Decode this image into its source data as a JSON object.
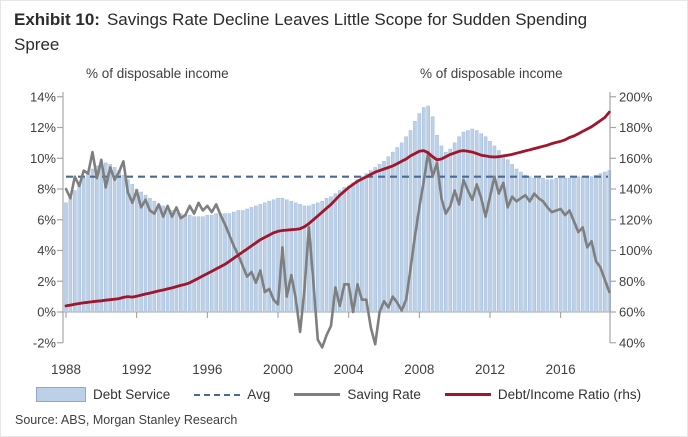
{
  "title": {
    "prefix": "Exhibit 10:",
    "main": "Savings Rate Decline Leaves Little Scope for Sudden Spending Spree"
  },
  "source": "Source: ABS, Morgan Stanley Research",
  "chart_data": {
    "type": "bar+line combo, quarterly time series",
    "x_start": 1988.0,
    "x_step": 0.25,
    "x_end": 2018.75,
    "left_axis": {
      "label": "% of disposable income",
      "min": -2,
      "max": 14,
      "tick_values": [
        14,
        12,
        10,
        8,
        6,
        4,
        2,
        0,
        -2
      ],
      "tick_labels": [
        "14%",
        "12%",
        "10%",
        "8%",
        "6%",
        "4%",
        "2%",
        "0%",
        "-2%"
      ]
    },
    "right_axis": {
      "label": "% of disposable income",
      "min": 40,
      "max": 200,
      "tick_values": [
        200,
        180,
        160,
        140,
        120,
        100,
        80,
        60,
        40
      ],
      "tick_labels": [
        "200%",
        "180%",
        "160%",
        "140%",
        "120%",
        "100%",
        "80%",
        "60%",
        "40%"
      ]
    },
    "x_axis": {
      "tick_values": [
        1988,
        1992,
        1996,
        2000,
        2004,
        2008,
        2012,
        2016
      ],
      "tick_labels": [
        "1988",
        "1992",
        "1996",
        "2000",
        "2004",
        "2008",
        "2012",
        "2016"
      ]
    },
    "series": [
      {
        "name": "Debt Service",
        "type": "bar",
        "axis": "left",
        "color": "#bcd0e8",
        "edge_color": "#a3bbd8",
        "values": [
          7.1,
          7.4,
          7.9,
          8.3,
          8.7,
          9.0,
          9.3,
          9.5,
          9.6,
          9.7,
          9.6,
          9.4,
          9.2,
          8.9,
          8.6,
          8.3,
          8.0,
          7.8,
          7.6,
          7.4,
          7.2,
          7.0,
          6.9,
          6.8,
          6.6,
          6.5,
          6.4,
          6.3,
          6.3,
          6.2,
          6.2,
          6.2,
          6.3,
          6.3,
          6.4,
          6.4,
          6.4,
          6.4,
          6.5,
          6.6,
          6.6,
          6.7,
          6.8,
          6.9,
          7.0,
          7.1,
          7.2,
          7.3,
          7.4,
          7.4,
          7.3,
          7.2,
          7.1,
          7.0,
          6.9,
          6.9,
          7.0,
          7.1,
          7.2,
          7.4,
          7.5,
          7.7,
          7.9,
          8.1,
          8.2,
          8.4,
          8.6,
          8.8,
          9.0,
          9.2,
          9.4,
          9.6,
          9.8,
          10.1,
          10.4,
          10.7,
          11.0,
          11.4,
          11.8,
          12.4,
          12.9,
          13.3,
          13.4,
          12.7,
          11.5,
          10.8,
          10.4,
          10.6,
          11.0,
          11.4,
          11.7,
          11.8,
          11.9,
          11.8,
          11.6,
          11.4,
          11.1,
          10.8,
          10.5,
          10.2,
          9.9,
          9.6,
          9.3,
          9.1,
          8.9,
          8.8,
          8.7,
          8.7,
          8.7,
          8.6,
          8.6,
          8.7,
          8.7,
          8.7,
          8.7,
          8.8,
          8.8,
          8.8,
          8.8,
          8.8,
          8.9,
          9.0,
          9.1,
          9.2
        ]
      },
      {
        "name": "Avg",
        "type": "dashed-line",
        "axis": "left",
        "color": "#4a6a94",
        "value": 8.8
      },
      {
        "name": "Saving Rate",
        "type": "line",
        "axis": "left",
        "color": "#7f7f7f",
        "values": [
          8.0,
          7.4,
          8.8,
          8.2,
          9.2,
          9.0,
          10.4,
          8.7,
          9.9,
          8.1,
          9.4,
          8.6,
          9.1,
          9.8,
          7.8,
          7.1,
          7.9,
          6.8,
          7.3,
          6.6,
          6.4,
          7.0,
          6.2,
          6.9,
          6.2,
          6.8,
          6.1,
          6.3,
          6.9,
          6.4,
          7.1,
          6.6,
          6.9,
          6.5,
          7.0,
          6.3,
          5.7,
          5.0,
          4.3,
          3.7,
          3.0,
          2.3,
          2.6,
          1.9,
          2.7,
          1.3,
          1.5,
          0.8,
          0.5,
          4.2,
          1.0,
          2.4,
          0.9,
          -1.3,
          1.5,
          5.5,
          2.0,
          -1.8,
          -2.3,
          -1.5,
          -0.9,
          1.6,
          0.4,
          1.8,
          1.8,
          0.0,
          1.8,
          0.8,
          0.8,
          -1.0,
          -2.1,
          0.0,
          0.7,
          0.3,
          1.0,
          0.6,
          0.1,
          0.8,
          2.8,
          4.9,
          6.8,
          8.5,
          10.4,
          8.8,
          9.7,
          7.4,
          6.4,
          6.9,
          7.9,
          7.0,
          8.6,
          7.9,
          7.3,
          8.3,
          7.4,
          6.2,
          7.5,
          8.8,
          7.7,
          8.4,
          6.8,
          7.5,
          7.2,
          7.4,
          7.6,
          7.2,
          7.7,
          7.4,
          7.2,
          6.8,
          6.5,
          6.6,
          6.7,
          6.3,
          6.6,
          5.9,
          5.2,
          5.5,
          4.2,
          4.6,
          3.3,
          2.9,
          2.1,
          1.3
        ]
      },
      {
        "name": "Debt/Income Ratio (rhs)",
        "type": "line",
        "axis": "right",
        "color": "#a0162c",
        "values": [
          64,
          64.5,
          65,
          65.5,
          66,
          66.3,
          66.7,
          67,
          67.3,
          67.7,
          68,
          68.3,
          68.7,
          69.5,
          70,
          69.7,
          70.3,
          71,
          71.7,
          72.3,
          73,
          73.7,
          74.3,
          75,
          75.7,
          76.5,
          77.3,
          78,
          79,
          80.5,
          82,
          83.5,
          85,
          86.5,
          88,
          89.5,
          91,
          93,
          95,
          97,
          99,
          101,
          103,
          105,
          107,
          108.5,
          110,
          111.5,
          112.5,
          113,
          113.3,
          113.5,
          113.7,
          114.2,
          115.5,
          117.5,
          120,
          122.5,
          125,
          127.5,
          130,
          133,
          136,
          138.5,
          141,
          143,
          145,
          146.5,
          148,
          149.5,
          151,
          152,
          153,
          154,
          155,
          156.5,
          158,
          159.5,
          161.5,
          163,
          164.5,
          165,
          163.5,
          161,
          159,
          159.5,
          161,
          162.5,
          163.5,
          164.5,
          165,
          164.5,
          164,
          163,
          162,
          161.5,
          161,
          160.8,
          161,
          161.5,
          162,
          162.5,
          163.3,
          164,
          164.8,
          165.5,
          166.3,
          167,
          167.8,
          168.5,
          169.5,
          170.3,
          171,
          172,
          173.5,
          174.5,
          176,
          177.5,
          179,
          180.5,
          182.5,
          184.5,
          186.5,
          190
        ]
      }
    ],
    "legend": [
      {
        "label": "Debt Service",
        "swatch": "bar"
      },
      {
        "label": "Avg",
        "swatch": "dashed-line"
      },
      {
        "label": "Saving Rate",
        "swatch": "line"
      },
      {
        "label": "Debt/Income Ratio (rhs)",
        "swatch": "line"
      }
    ],
    "colors": {
      "bar_fill": "#bcd0e8",
      "avg_dash": "#4a6a94",
      "saving_rate": "#7f7f7f",
      "debt_income": "#a0162c"
    }
  }
}
